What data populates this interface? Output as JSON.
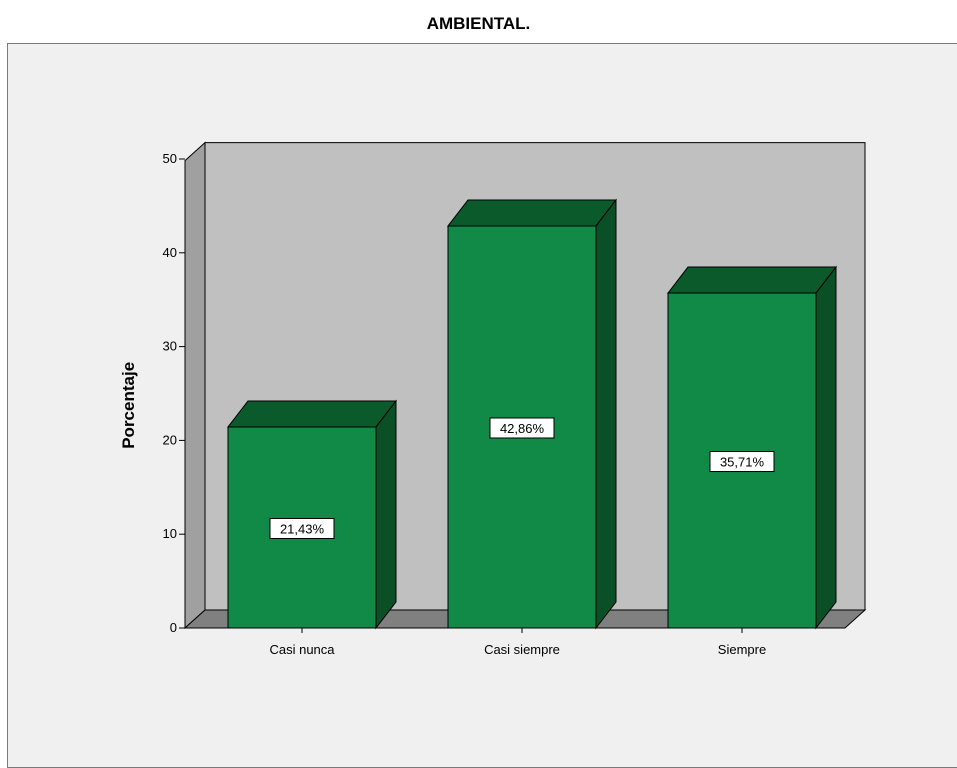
{
  "chart_data": {
    "type": "bar",
    "title": "AMBIENTAL.",
    "ylabel": "Porcentaje",
    "xlabel": "",
    "categories": [
      "Casi nunca",
      "Casi siempre",
      "Siempre"
    ],
    "values": [
      21.43,
      42.86,
      35.71
    ],
    "data_labels": [
      "21,43%",
      "42,86%",
      "35,71%"
    ],
    "yticks": [
      "0",
      "10",
      "20",
      "30",
      "40",
      "50"
    ],
    "ylim": [
      0,
      50
    ],
    "style": "3d",
    "colors": {
      "bar_front": "#118a47",
      "bar_top": "#0b5a2b",
      "bar_side": "#0a4f26",
      "back_wall": "#c0c0c0",
      "floor": "#808080",
      "left_wall": "#a0a0a0",
      "frame_bg": "#f0f0f0"
    }
  }
}
